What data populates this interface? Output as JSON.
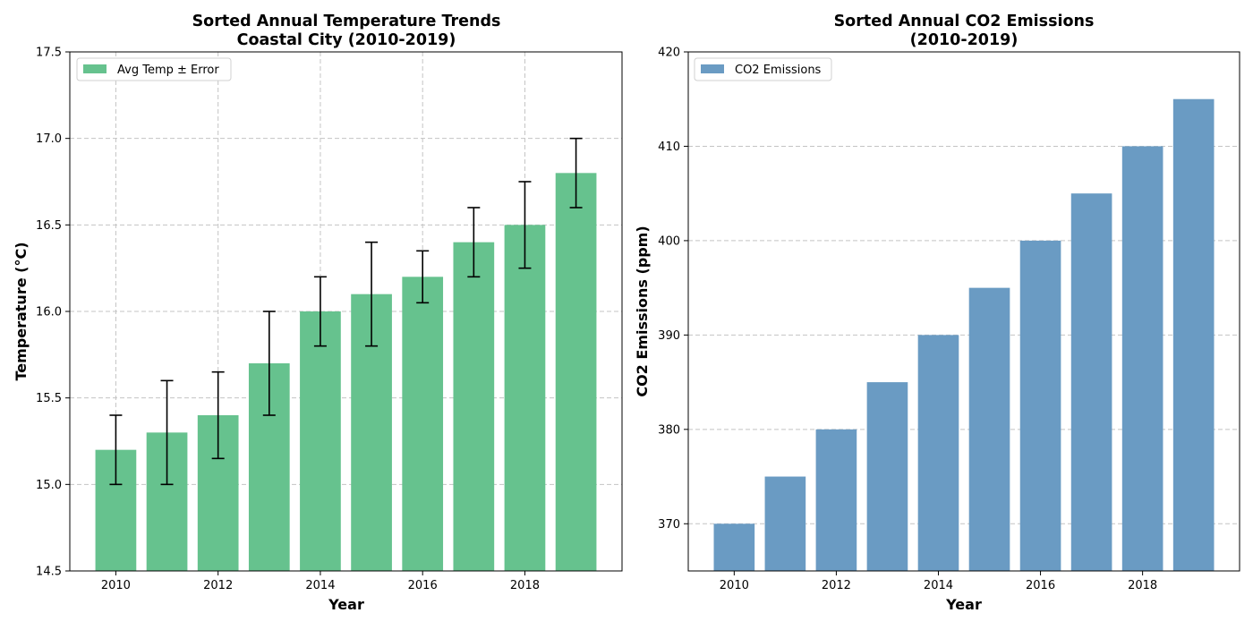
{
  "chart_data": [
    {
      "type": "bar",
      "title": "Sorted Annual Temperature Trends\nCoastal City (2010-2019)",
      "title_lines": [
        "Sorted Annual Temperature Trends",
        "Coastal City (2010-2019)"
      ],
      "xlabel": "Year",
      "ylabel": "Temperature (°C)",
      "x": [
        2010,
        2011,
        2012,
        2013,
        2014,
        2015,
        2016,
        2017,
        2018,
        2019
      ],
      "series": [
        {
          "name": "Avg Temp ± Error",
          "values": [
            15.2,
            15.3,
            15.4,
            15.7,
            16.0,
            16.1,
            16.2,
            16.4,
            16.5,
            16.8
          ],
          "error": [
            0.2,
            0.3,
            0.25,
            0.3,
            0.2,
            0.3,
            0.15,
            0.2,
            0.25,
            0.2
          ],
          "color": "#66c28e"
        }
      ],
      "xlim": [
        2009.1,
        2019.9
      ],
      "ylim": [
        14.5,
        17.5
      ],
      "xticks": [
        2010,
        2012,
        2014,
        2016,
        2018
      ],
      "xtick_labels": [
        "2010",
        "2012",
        "2014",
        "2016",
        "2018"
      ],
      "yticks": [
        14.5,
        15.0,
        15.5,
        16.0,
        16.5,
        17.0,
        17.5
      ],
      "ytick_labels": [
        "14.5",
        "15.0",
        "15.5",
        "16.0",
        "16.5",
        "17.0",
        "17.5"
      ],
      "grid": "both",
      "grid_axis": "both",
      "legend_position": "upper left"
    },
    {
      "type": "bar",
      "title": "Sorted Annual CO2 Emissions\n(2010-2019)",
      "title_lines": [
        "Sorted Annual CO2 Emissions",
        "(2010-2019)"
      ],
      "xlabel": "Year",
      "ylabel": "CO2 Emissions (ppm)",
      "x": [
        2010,
        2011,
        2012,
        2013,
        2014,
        2015,
        2016,
        2017,
        2018,
        2019
      ],
      "series": [
        {
          "name": "CO2 Emissions",
          "values": [
            370,
            375,
            380,
            385,
            390,
            395,
            400,
            405,
            410,
            415
          ],
          "color": "#6a9bc3"
        }
      ],
      "xlim": [
        2009.1,
        2019.9
      ],
      "ylim": [
        365,
        420
      ],
      "xticks": [
        2010,
        2012,
        2014,
        2016,
        2018
      ],
      "xtick_labels": [
        "2010",
        "2012",
        "2014",
        "2016",
        "2018"
      ],
      "yticks": [
        370,
        380,
        390,
        400,
        410,
        420
      ],
      "ytick_labels": [
        "370",
        "380",
        "390",
        "400",
        "410",
        "420"
      ],
      "grid": "y",
      "grid_axis": "y",
      "legend_position": "upper left"
    }
  ]
}
